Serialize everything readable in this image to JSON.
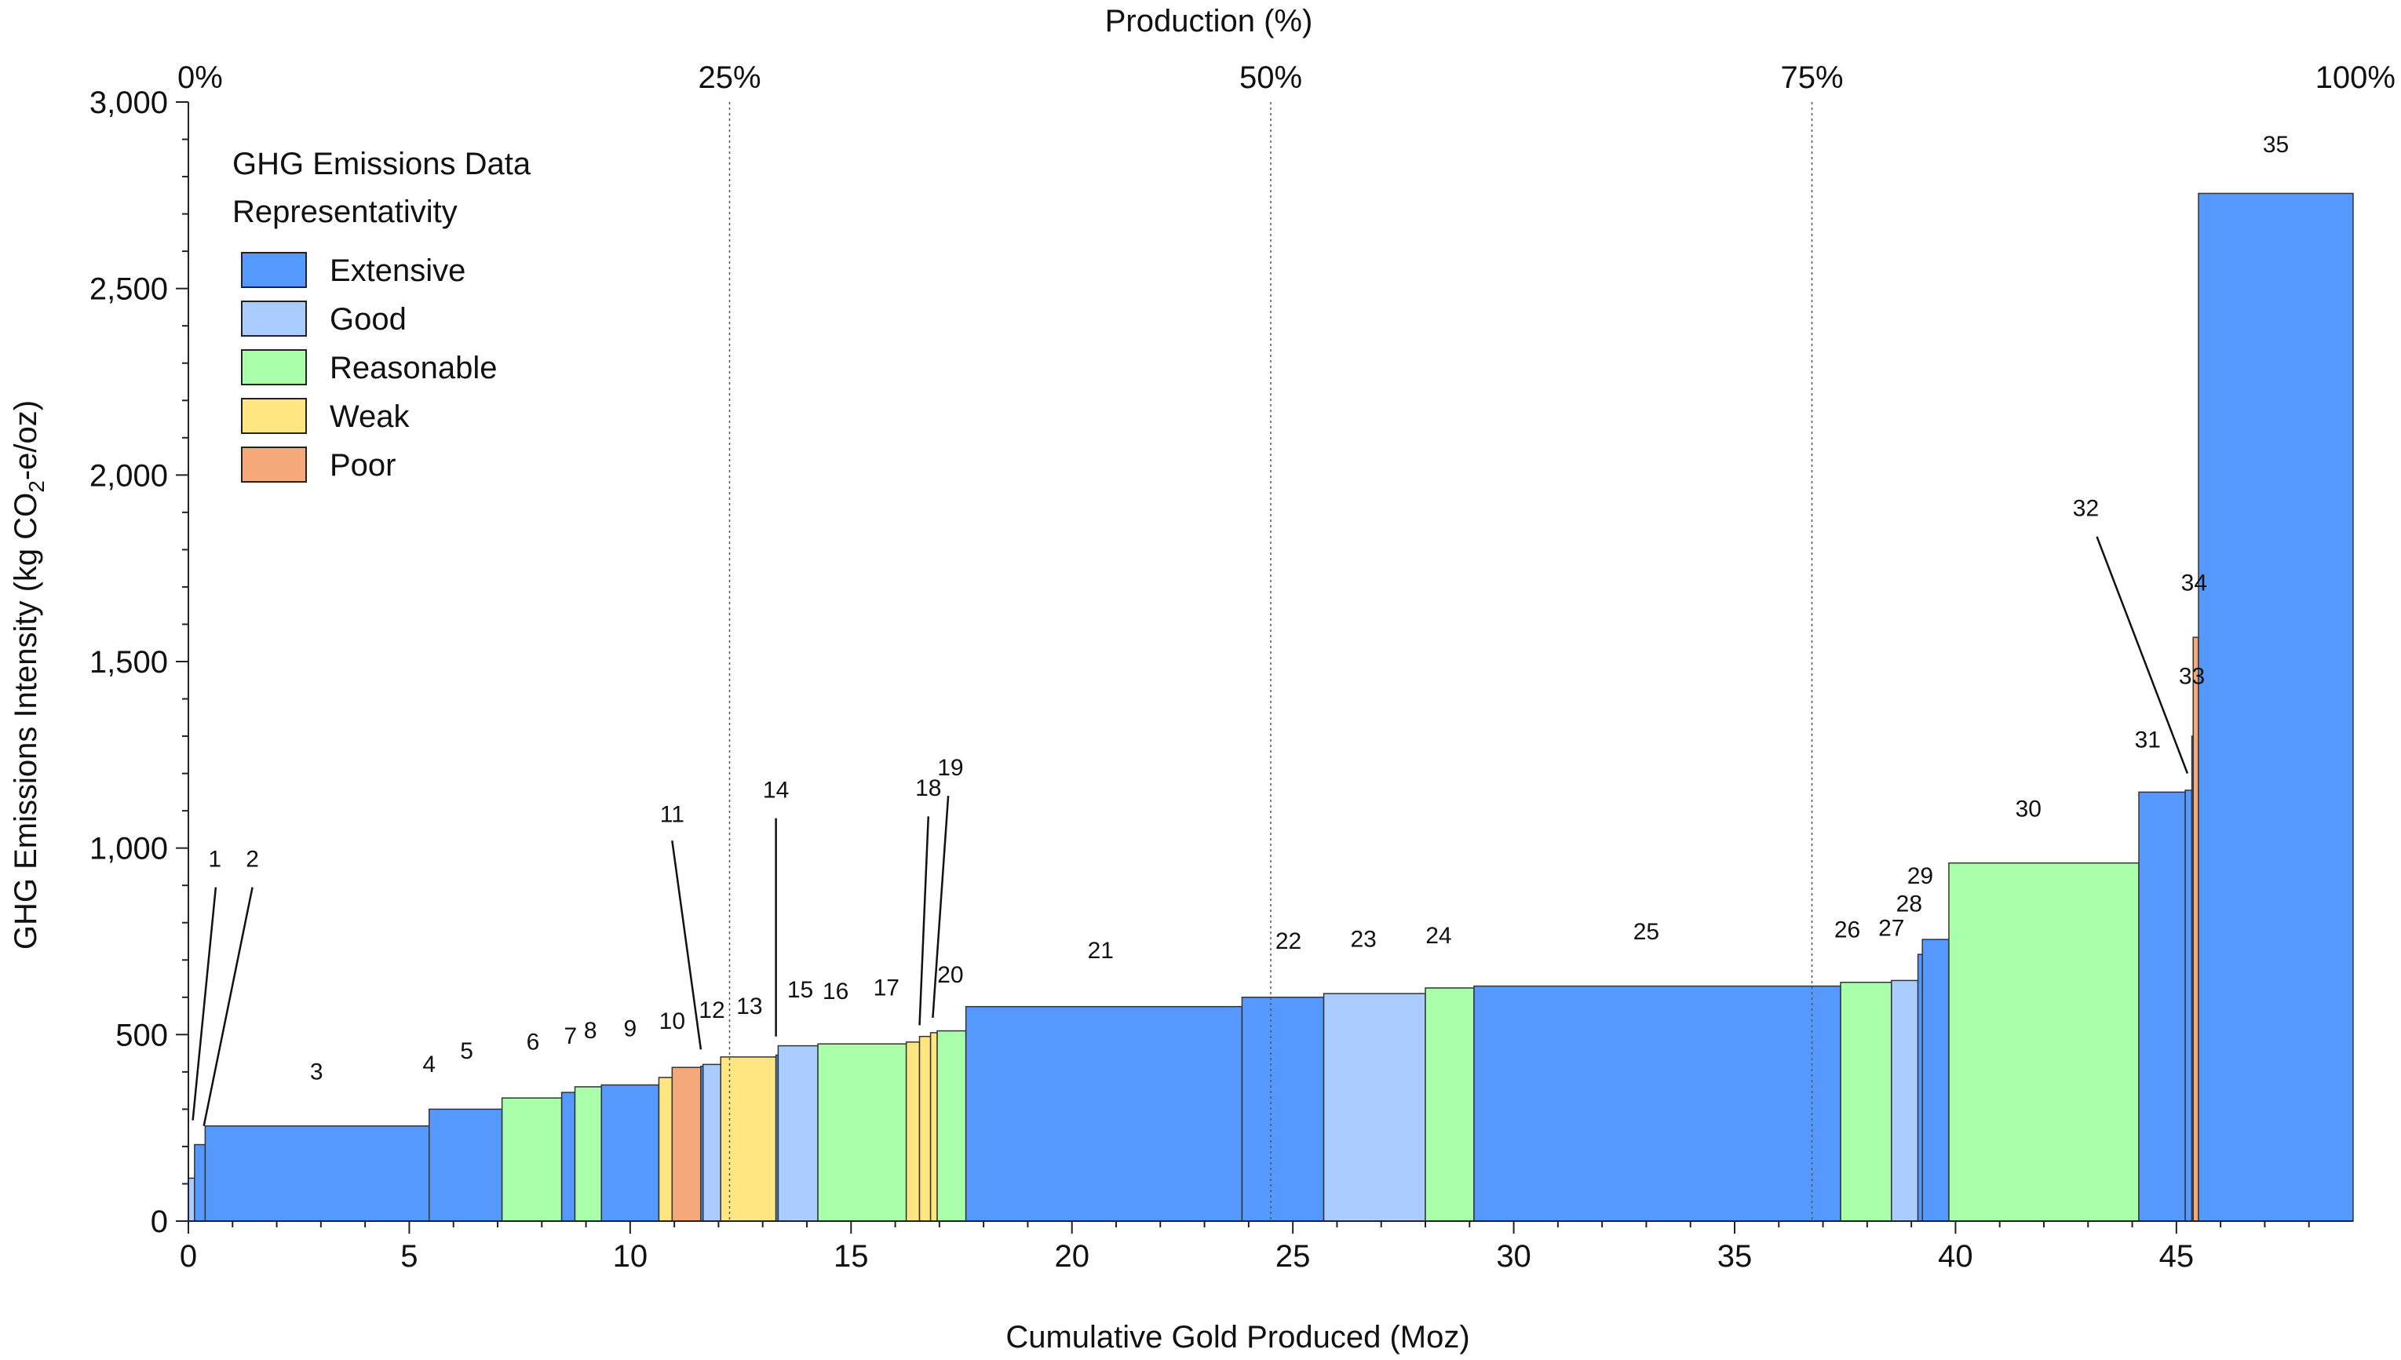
{
  "chart_data": {
    "type": "bar",
    "subtype": "marginal-cost-curve (variable-width bars)",
    "title": "",
    "xlabel": "Cumulative Gold Produced (Moz)",
    "ylabel_main": "GHG Emissions Intensity (kg CO",
    "ylabel_sub": "2",
    "ylabel_tail": "-e/oz)",
    "secondary_xlabel": "Production (%)",
    "xlim": [
      0,
      49
    ],
    "ylim": [
      0,
      3000
    ],
    "x_ticks": [
      0,
      5,
      10,
      15,
      20,
      25,
      30,
      35,
      40,
      45
    ],
    "x_tick_labels": [
      "0",
      "5",
      "10",
      "15",
      "20",
      "25",
      "30",
      "35",
      "40",
      "45"
    ],
    "y_ticks": [
      0,
      500,
      1000,
      1500,
      2000,
      2500,
      3000
    ],
    "y_tick_labels": [
      "0",
      "500",
      "1,000",
      "1,500",
      "2,000",
      "2,500",
      "3,000"
    ],
    "top_ticks": [
      {
        "label": "0%",
        "moz": 0
      },
      {
        "label": "25%",
        "moz": 12.25
      },
      {
        "label": "50%",
        "moz": 24.5
      },
      {
        "label": "75%",
        "moz": 36.75
      },
      {
        "label": "100%",
        "moz": 49
      }
    ],
    "reference_lines_moz": [
      12.25,
      24.5,
      36.75
    ],
    "legend": {
      "title_line1": "GHG Emissions Data",
      "title_line2": "Representativity",
      "position": "top-left",
      "entries": [
        {
          "key": "extensive",
          "label": "Extensive"
        },
        {
          "key": "good",
          "label": "Good"
        },
        {
          "key": "reasonable",
          "label": "Reasonable"
        },
        {
          "key": "weak",
          "label": "Weak"
        },
        {
          "key": "poor",
          "label": "Poor"
        }
      ]
    },
    "colors": {
      "extensive": "#5599ff",
      "good": "#aaccff",
      "reasonable": "#aaffaa",
      "weak": "#ffe680",
      "poor": "#f5a97a",
      "edge": "#333333"
    },
    "bars": [
      {
        "id": "1",
        "x0": 0.0,
        "x1": 0.14,
        "value": 115,
        "rep": "good",
        "label_x": 0.6,
        "label_y": 950,
        "leader": true
      },
      {
        "id": "2",
        "x0": 0.14,
        "x1": 0.38,
        "value": 205,
        "rep": "extensive",
        "label_x": 1.45,
        "label_y": 950,
        "leader": true
      },
      {
        "id": "3",
        "x0": 0.38,
        "x1": 5.45,
        "value": 255,
        "rep": "extensive",
        "label_x": 2.9,
        "label_y": 380
      },
      {
        "id": "4",
        "x0": 5.45,
        "x1": 7.1,
        "value": 300,
        "rep": "extensive",
        "label_x": 5.45,
        "label_y": 400
      },
      {
        "id": "5",
        "x0": 7.1,
        "x1": 8.45,
        "value": 330,
        "rep": "reasonable",
        "label_x": 6.3,
        "label_y": 435
      },
      {
        "id": "6",
        "x0": 8.45,
        "x1": 8.75,
        "value": 345,
        "rep": "extensive",
        "label_x": 7.8,
        "label_y": 460
      },
      {
        "id": "7",
        "x0": 8.75,
        "x1": 9.35,
        "value": 360,
        "rep": "reasonable",
        "label_x": 8.65,
        "label_y": 475
      },
      {
        "id": "8",
        "x0": 9.35,
        "x1": 10.65,
        "value": 365,
        "rep": "extensive",
        "label_x": 9.1,
        "label_y": 490
      },
      {
        "id": "9",
        "x0": 10.65,
        "x1": 10.95,
        "value": 385,
        "rep": "weak",
        "label_x": 10.0,
        "label_y": 495
      },
      {
        "id": "10",
        "x0": 10.95,
        "x1": 11.6,
        "value": 412,
        "rep": "poor",
        "label_x": 10.95,
        "label_y": 515
      },
      {
        "id": "11",
        "x0": 11.6,
        "x1": 11.65,
        "value": 415,
        "rep": "extensive",
        "label_x": 10.95,
        "label_y": 1070,
        "leader": true
      },
      {
        "id": "12",
        "x0": 11.65,
        "x1": 12.05,
        "value": 420,
        "rep": "good",
        "label_x": 11.85,
        "label_y": 545
      },
      {
        "id": "13",
        "x0": 12.05,
        "x1": 13.3,
        "value": 440,
        "rep": "weak",
        "label_x": 12.7,
        "label_y": 555
      },
      {
        "id": "14",
        "x0": 13.3,
        "x1": 13.35,
        "value": 445,
        "rep": "extensive",
        "label_x": 13.3,
        "label_y": 1135,
        "leader": true
      },
      {
        "id": "15",
        "x0": 13.35,
        "x1": 14.25,
        "value": 470,
        "rep": "good",
        "label_x": 13.85,
        "label_y": 600
      },
      {
        "id": "16",
        "x0": 14.25,
        "x1": 16.25,
        "value": 475,
        "rep": "reasonable",
        "label_x": 14.65,
        "label_y": 595
      },
      {
        "id": "17",
        "x0": 16.25,
        "x1": 16.55,
        "value": 480,
        "rep": "weak",
        "label_x": 15.8,
        "label_y": 605
      },
      {
        "id": "18",
        "x0": 16.55,
        "x1": 16.8,
        "value": 495,
        "rep": "weak",
        "label_x": 16.75,
        "label_y": 1140,
        "leader": true
      },
      {
        "id": "19",
        "x0": 16.8,
        "x1": 16.95,
        "value": 505,
        "rep": "weak",
        "label_x": 17.25,
        "label_y": 1195,
        "leader": true
      },
      {
        "id": "20",
        "x0": 16.95,
        "x1": 17.6,
        "value": 510,
        "rep": "reasonable",
        "label_x": 17.25,
        "label_y": 640
      },
      {
        "id": "21",
        "x0": 17.6,
        "x1": 23.85,
        "value": 575,
        "rep": "extensive",
        "label_x": 20.65,
        "label_y": 705
      },
      {
        "id": "22",
        "x0": 23.85,
        "x1": 25.7,
        "value": 600,
        "rep": "extensive",
        "label_x": 24.9,
        "label_y": 730
      },
      {
        "id": "23",
        "x0": 25.7,
        "x1": 28.0,
        "value": 610,
        "rep": "good",
        "label_x": 26.6,
        "label_y": 735
      },
      {
        "id": "24",
        "x0": 28.0,
        "x1": 29.1,
        "value": 625,
        "rep": "reasonable",
        "label_x": 28.3,
        "label_y": 745
      },
      {
        "id": "25",
        "x0": 29.1,
        "x1": 37.4,
        "value": 630,
        "rep": "extensive",
        "label_x": 33.0,
        "label_y": 755
      },
      {
        "id": "26",
        "x0": 37.4,
        "x1": 38.55,
        "value": 640,
        "rep": "reasonable",
        "label_x": 37.55,
        "label_y": 760
      },
      {
        "id": "27",
        "x0": 38.55,
        "x1": 39.15,
        "value": 645,
        "rep": "good",
        "label_x": 38.55,
        "label_y": 765
      },
      {
        "id": "28",
        "x0": 39.15,
        "x1": 39.25,
        "value": 715,
        "rep": "extensive",
        "label_x": 38.95,
        "label_y": 830
      },
      {
        "id": "29",
        "x0": 39.25,
        "x1": 39.85,
        "value": 755,
        "rep": "extensive",
        "label_x": 39.2,
        "label_y": 905
      },
      {
        "id": "30",
        "x0": 39.85,
        "x1": 44.15,
        "value": 960,
        "rep": "reasonable",
        "label_x": 41.65,
        "label_y": 1085
      },
      {
        "id": "31",
        "x0": 44.15,
        "x1": 45.2,
        "value": 1150,
        "rep": "extensive",
        "label_x": 44.35,
        "label_y": 1270
      },
      {
        "id": "32",
        "x0": 45.2,
        "x1": 45.35,
        "value": 1155,
        "rep": "extensive",
        "label_x": 42.95,
        "label_y": 1890,
        "leader": true
      },
      {
        "id": "33",
        "x0": 45.35,
        "x1": 45.38,
        "value": 1300,
        "rep": "extensive",
        "label_x": 45.35,
        "label_y": 1440
      },
      {
        "id": "34",
        "x0": 45.38,
        "x1": 45.5,
        "value": 1565,
        "rep": "poor",
        "label_x": 45.4,
        "label_y": 1690
      },
      {
        "id": "35",
        "x0": 45.5,
        "x1": 49.0,
        "value": 2755,
        "rep": "extensive",
        "label_x": 47.25,
        "label_y": 2865
      }
    ],
    "leaders": [
      {
        "id": "1",
        "from": [
          0.62,
          895
        ],
        "to": [
          0.1,
          270
        ]
      },
      {
        "id": "2",
        "from": [
          1.45,
          895
        ],
        "to": [
          0.35,
          255
        ]
      },
      {
        "id": "11",
        "from": [
          10.95,
          1020
        ],
        "to": [
          11.6,
          460
        ]
      },
      {
        "id": "14",
        "from": [
          13.3,
          1080
        ],
        "to": [
          13.3,
          495
        ]
      },
      {
        "id": "18",
        "from": [
          16.75,
          1085
        ],
        "to": [
          16.55,
          525
        ]
      },
      {
        "id": "19",
        "from": [
          17.2,
          1140
        ],
        "to": [
          16.85,
          545
        ]
      },
      {
        "id": "32",
        "from": [
          43.2,
          1835
        ],
        "to": [
          45.25,
          1200
        ]
      }
    ]
  }
}
